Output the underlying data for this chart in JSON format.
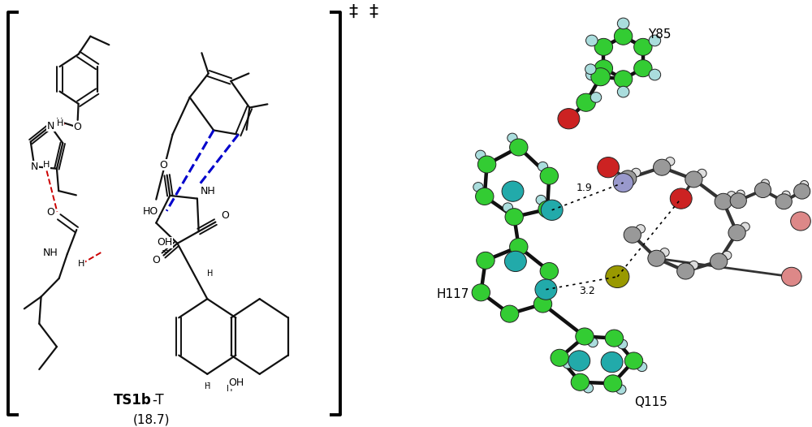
{
  "figure_width": 10.0,
  "figure_height": 5.26,
  "dpi": 100,
  "background_color": "#ffffff",
  "left_panel": {
    "label_bold": "TS1b",
    "label_normal": "-T",
    "energy": "(18.7)",
    "dagger": "‡"
  },
  "right_panel": {
    "y85_label": "Y85",
    "h117_label": "H117",
    "q115_label": "Q115",
    "dist1": "1.9",
    "dist2": "3.2",
    "dagger": "‡"
  },
  "colors": {
    "green_atom": "#33cc33",
    "light_green": "#66dd66",
    "teal_atom": "#22aaaa",
    "red_atom": "#cc2222",
    "white_atom": "#dddddd",
    "gray_atom": "#999999",
    "dark_gray": "#555555",
    "blue_atom": "#9999cc",
    "olive_atom": "#999900",
    "light_teal_h": "#aadddd",
    "black_bond": "#111111",
    "red_dashed": "#cc0000",
    "blue_dashed": "#0000cc",
    "pink_atom": "#dd8888"
  }
}
